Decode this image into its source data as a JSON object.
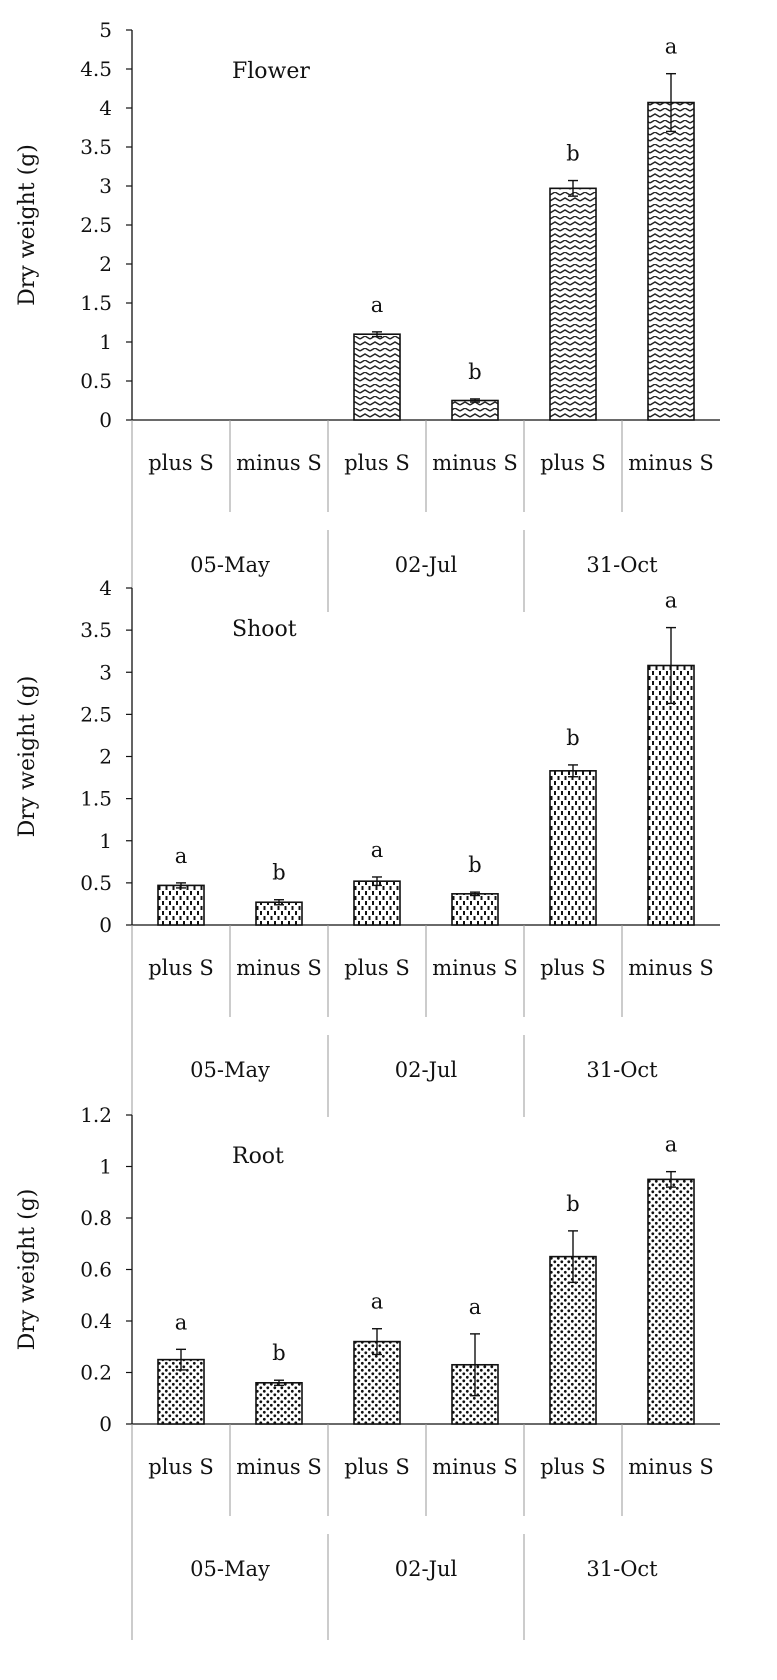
{
  "figure": {
    "groups": [
      "05-May",
      "02-Jul",
      "31-Oct"
    ],
    "treatments": [
      "plus S",
      "minus S"
    ]
  },
  "chart_data": [
    {
      "type": "bar",
      "title": "Flower",
      "ylabel": "Dry weight (g)",
      "ylim": [
        0,
        5
      ],
      "yticks": [
        "0",
        "0.5",
        "1",
        "1.5",
        "2",
        "2.5",
        "3",
        "3.5",
        "4",
        "4.5",
        "5"
      ],
      "categories": [
        "plus S",
        "minus S",
        "plus S",
        "minus S",
        "plus S",
        "minus S"
      ],
      "groups": [
        "05-May",
        "02-Jul",
        "31-Oct"
      ],
      "values": [
        0,
        0,
        1.1,
        0.25,
        2.97,
        4.07
      ],
      "errors": [
        0,
        0,
        0.03,
        0.02,
        0.1,
        0.37
      ],
      "significance": [
        "",
        "",
        "a",
        "b",
        "b",
        "a"
      ],
      "pattern": "zigzag"
    },
    {
      "type": "bar",
      "title": "Shoot",
      "ylabel": "Dry weight (g)",
      "ylim": [
        0,
        4
      ],
      "yticks": [
        "0",
        "0.5",
        "1",
        "1.5",
        "2",
        "2.5",
        "3",
        "3.5",
        "4"
      ],
      "categories": [
        "plus S",
        "minus S",
        "plus S",
        "minus S",
        "plus S",
        "minus S"
      ],
      "groups": [
        "05-May",
        "02-Jul",
        "31-Oct"
      ],
      "values": [
        0.47,
        0.27,
        0.52,
        0.37,
        1.83,
        3.08
      ],
      "errors": [
        0.03,
        0.03,
        0.05,
        0.02,
        0.07,
        0.45
      ],
      "significance": [
        "a",
        "b",
        "a",
        "b",
        "b",
        "a"
      ],
      "pattern": "dashes"
    },
    {
      "type": "bar",
      "title": "Root",
      "ylabel": "Dry weight (g)",
      "ylim": [
        0,
        1.2
      ],
      "yticks": [
        "0",
        "0.2",
        "0.4",
        "0.6",
        "0.8",
        "1",
        "1.2"
      ],
      "categories": [
        "plus S",
        "minus S",
        "plus S",
        "minus S",
        "plus S",
        "minus S"
      ],
      "groups": [
        "05-May",
        "02-Jul",
        "31-Oct"
      ],
      "values": [
        0.25,
        0.16,
        0.32,
        0.23,
        0.65,
        0.95
      ],
      "errors": [
        0.04,
        0.01,
        0.05,
        0.12,
        0.1,
        0.03
      ],
      "significance": [
        "a",
        "b",
        "a",
        "a",
        "b",
        "a"
      ],
      "pattern": "dots"
    }
  ]
}
